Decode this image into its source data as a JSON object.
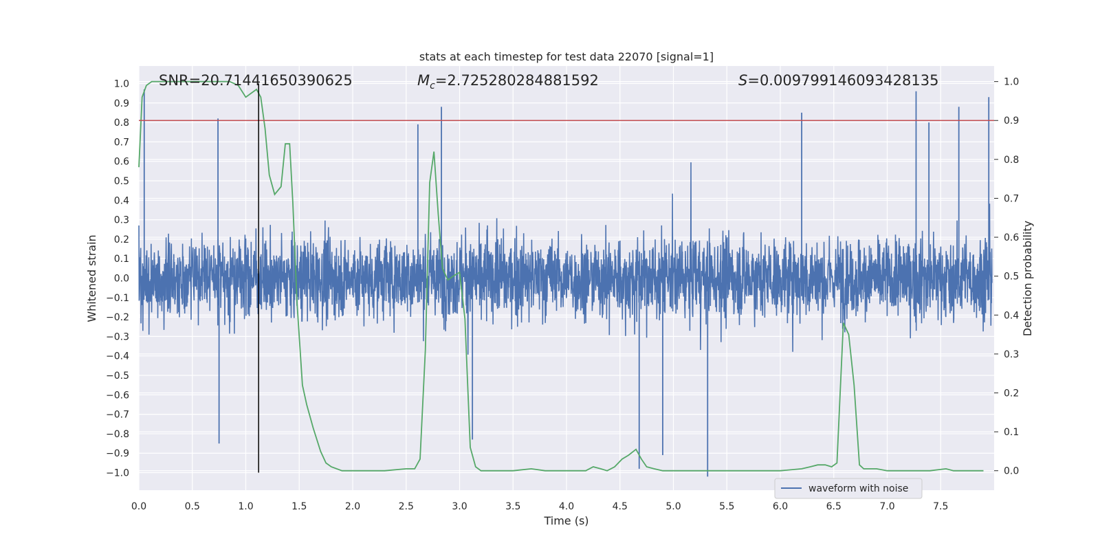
{
  "chart_data": {
    "type": "line",
    "title": "stats at each timestep for test data 22070 [signal=1]",
    "xlabel": "Time (s)",
    "ylabel": "Whitened strain",
    "y2label": "Detection probability",
    "xlim": [
      0.0,
      8.0
    ],
    "ylim": [
      -1.09,
      1.09
    ],
    "y2lim": [
      -0.05,
      1.04
    ],
    "grid": true,
    "legend_position": "lower-right",
    "xticks": [
      "0.0",
      "0.5",
      "1.0",
      "1.5",
      "2.0",
      "2.5",
      "3.0",
      "3.5",
      "4.0",
      "4.5",
      "5.0",
      "5.5",
      "6.0",
      "6.5",
      "7.0",
      "7.5"
    ],
    "yticks": [
      "1.0",
      "0.9",
      "0.8",
      "0.7",
      "0.6",
      "0.5",
      "0.4",
      "0.3",
      "0.2",
      "0.1",
      "0.0",
      "−0.1",
      "−0.2",
      "−0.3",
      "−0.4",
      "−0.5",
      "−0.6",
      "−0.7",
      "−0.8",
      "−0.9",
      "−1.0"
    ],
    "y2ticks": [
      "1.0",
      "0.9",
      "0.8",
      "0.7",
      "0.6",
      "0.5",
      "0.4",
      "0.3",
      "0.2",
      "0.1",
      "0.0"
    ],
    "annotations": {
      "snr": "SNR=20.71441650390625",
      "mc_symbol": "M",
      "mc_sub": "c",
      "mc_value": "=2.725280284881592",
      "s_symbol": "S",
      "s_value": "=0.009799146093428135"
    },
    "threshold": {
      "value": 0.9,
      "axis": "y2",
      "color": "#c44e52"
    },
    "event_time": 1.12,
    "waveform": {
      "name": "waveform with noise",
      "color": "#4c72b0",
      "typical_amplitude": 0.45,
      "peaks": [
        {
          "t": 0.05,
          "v": 0.97
        },
        {
          "t": 0.74,
          "v": 0.82
        },
        {
          "t": 0.75,
          "v": -0.85
        },
        {
          "t": 2.61,
          "v": 0.79
        },
        {
          "t": 2.83,
          "v": 0.88
        },
        {
          "t": 3.12,
          "v": -0.83
        },
        {
          "t": 4.68,
          "v": -0.98
        },
        {
          "t": 4.9,
          "v": -0.91
        },
        {
          "t": 5.32,
          "v": -1.02
        },
        {
          "t": 6.2,
          "v": 0.85
        },
        {
          "t": 7.27,
          "v": 0.96
        },
        {
          "t": 7.39,
          "v": 0.8
        },
        {
          "t": 7.67,
          "v": 0.88
        },
        {
          "t": 7.95,
          "v": 0.93
        }
      ]
    },
    "detection_probability": {
      "color": "#55a868",
      "x": [
        0.0,
        0.03,
        0.07,
        0.12,
        0.2,
        0.3,
        0.5,
        0.7,
        0.85,
        0.93,
        1.0,
        1.05,
        1.1,
        1.14,
        1.18,
        1.22,
        1.27,
        1.33,
        1.37,
        1.41,
        1.44,
        1.48,
        1.53,
        1.57,
        1.63,
        1.7,
        1.75,
        1.8,
        1.9,
        2.1,
        2.3,
        2.5,
        2.58,
        2.63,
        2.68,
        2.72,
        2.76,
        2.8,
        2.84,
        2.89,
        2.94,
        3.0,
        3.05,
        3.1,
        3.15,
        3.2,
        3.3,
        3.5,
        3.67,
        3.8,
        4.0,
        4.18,
        4.25,
        4.32,
        4.38,
        4.45,
        4.52,
        4.58,
        4.65,
        4.7,
        4.75,
        4.82,
        4.9,
        5.0,
        5.1,
        5.2,
        5.4,
        5.6,
        5.8,
        6.0,
        6.2,
        6.28,
        6.35,
        6.42,
        6.48,
        6.53,
        6.59,
        6.64,
        6.69,
        6.74,
        6.78,
        6.82,
        6.9,
        7.0,
        7.2,
        7.4,
        7.55,
        7.62,
        7.68,
        7.75,
        7.9
      ],
      "y": [
        0.78,
        0.96,
        0.99,
        1.0,
        1.0,
        1.0,
        1.0,
        1.0,
        1.0,
        0.99,
        0.96,
        0.97,
        0.98,
        0.96,
        0.88,
        0.76,
        0.71,
        0.73,
        0.84,
        0.84,
        0.69,
        0.43,
        0.22,
        0.17,
        0.11,
        0.05,
        0.02,
        0.01,
        0.0,
        0.0,
        0.0,
        0.005,
        0.005,
        0.03,
        0.31,
        0.74,
        0.82,
        0.66,
        0.52,
        0.49,
        0.5,
        0.51,
        0.39,
        0.06,
        0.01,
        0.0,
        0.0,
        0.0,
        0.005,
        0.0,
        0.0,
        0.0,
        0.01,
        0.005,
        0.0,
        0.01,
        0.03,
        0.04,
        0.055,
        0.03,
        0.01,
        0.005,
        0.0,
        0.0,
        0.0,
        0.0,
        0.0,
        0.0,
        0.0,
        0.0,
        0.005,
        0.01,
        0.015,
        0.015,
        0.01,
        0.02,
        0.38,
        0.35,
        0.22,
        0.015,
        0.005,
        0.005,
        0.005,
        0.0,
        0.0,
        0.0,
        0.005,
        0.0,
        0.0,
        0.0,
        0.0
      ]
    }
  }
}
